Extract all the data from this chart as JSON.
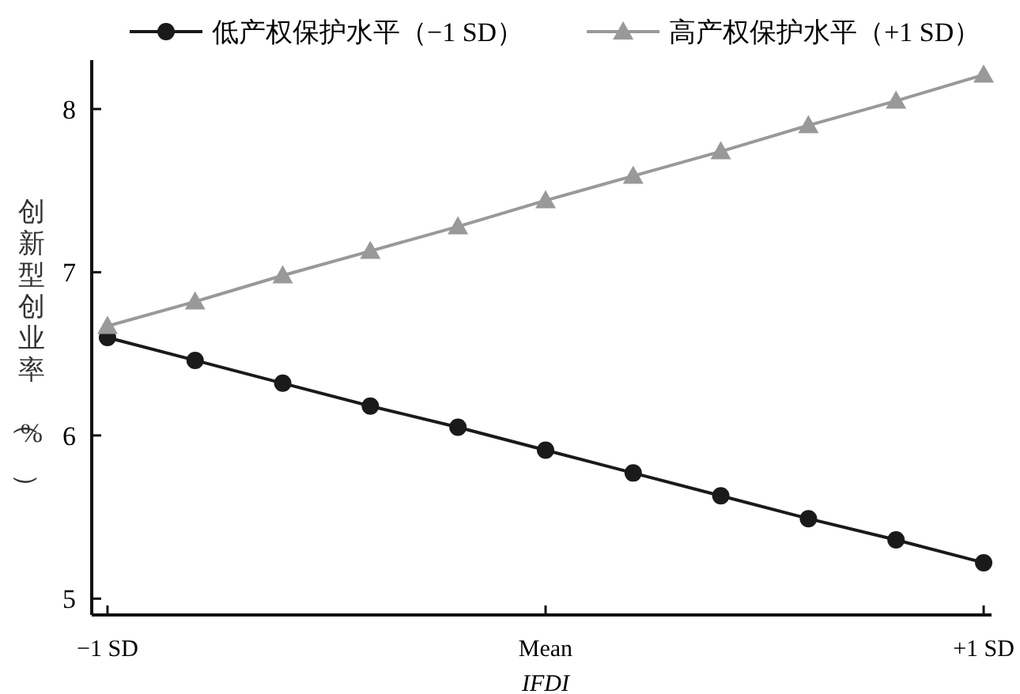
{
  "chart_data": {
    "type": "line",
    "xlabel": "IFDI",
    "ylabel": "创新型创业率（%）",
    "x": [
      -1,
      -0.8,
      -0.6,
      -0.4,
      -0.2,
      0,
      0.2,
      0.4,
      0.6,
      0.8,
      1
    ],
    "xlim": [
      -1.036,
      1.018
    ],
    "xticks": [
      {
        "value": -1,
        "label": "−1 SD"
      },
      {
        "value": 0,
        "label": "Mean"
      },
      {
        "value": 1,
        "label": "+1 SD"
      }
    ],
    "ylim": [
      4.9,
      8.3
    ],
    "yticks": [
      5,
      6,
      7,
      8
    ],
    "series": [
      {
        "name": "低产权保护水平（−1 SD）",
        "color": "#1a1a1a",
        "marker": "circle",
        "values": [
          6.6,
          6.46,
          6.32,
          6.18,
          6.05,
          5.91,
          5.77,
          5.63,
          5.49,
          5.36,
          5.22
        ]
      },
      {
        "name": "高产权保护水平（+1 SD）",
        "color": "#999999",
        "marker": "triangle",
        "values": [
          6.67,
          6.82,
          6.98,
          7.13,
          7.28,
          7.44,
          7.59,
          7.74,
          7.9,
          8.05,
          8.21
        ]
      }
    ],
    "legend": "top",
    "grid": false,
    "line_style": "solid"
  }
}
